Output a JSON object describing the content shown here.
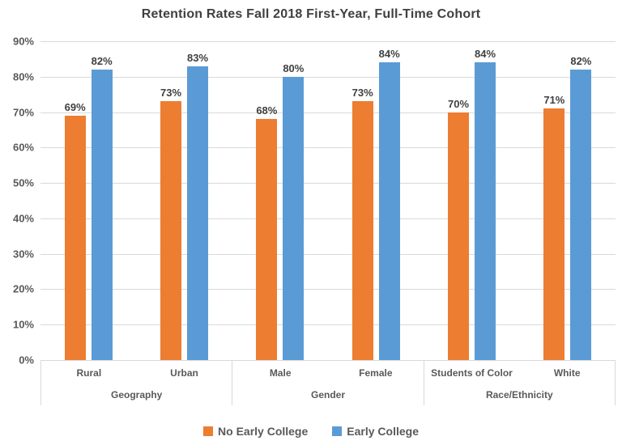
{
  "colors": {
    "background": "#FFFFFF",
    "title_text": "#404040",
    "axis_text": "#595959",
    "data_label_text": "#404040",
    "gridline": "#D9D9D9",
    "axis_line": "#D9D9D9",
    "no_early_college": "#ED7D31",
    "early_college": "#5B9BD5"
  },
  "chart_data": {
    "type": "bar",
    "title": "Retention Rates Fall 2018 First-Year, Full-Time Cohort",
    "xlabel": "",
    "ylabel": "",
    "ylim": [
      0,
      90
    ],
    "y_tick_step": 10,
    "y_tick_labels": [
      "0%",
      "10%",
      "20%",
      "30%",
      "40%",
      "50%",
      "60%",
      "70%",
      "80%",
      "90%"
    ],
    "grid": true,
    "legend_position": "bottom",
    "data_label_suffix": "%",
    "groups": [
      {
        "label": "Geography",
        "categories": [
          "Rural",
          "Urban"
        ]
      },
      {
        "label": "Gender",
        "categories": [
          "Male",
          "Female"
        ]
      },
      {
        "label": "Race/Ethnicity",
        "categories": [
          "Students of Color",
          "White"
        ]
      }
    ],
    "categories": [
      "Rural",
      "Urban",
      "Male",
      "Female",
      "Students of Color",
      "White"
    ],
    "series": [
      {
        "name": "No Early College",
        "color": "#ED7D31",
        "values": [
          69,
          73,
          68,
          73,
          70,
          71
        ]
      },
      {
        "name": "Early College",
        "color": "#5B9BD5",
        "values": [
          82,
          83,
          80,
          84,
          84,
          82
        ]
      }
    ]
  }
}
